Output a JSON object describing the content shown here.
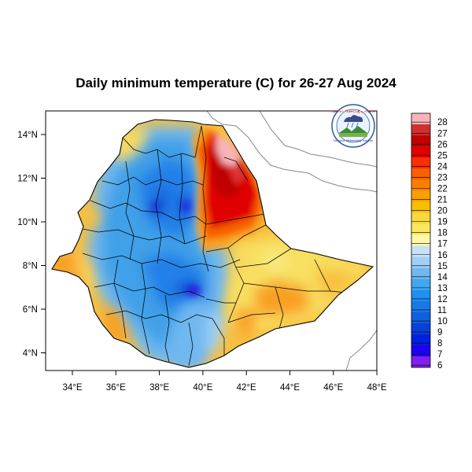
{
  "title": "Daily minimum temperature (C) for 26-27 Aug 2024",
  "axes": {
    "x_ticks": [
      "34°E",
      "36°E",
      "38°E",
      "40°E",
      "42°E",
      "44°E",
      "46°E",
      "48°E"
    ],
    "y_ticks": [
      "14°N",
      "12°N",
      "10°N",
      "8°N",
      "6°N",
      "4°N"
    ]
  },
  "colorbar": {
    "labels": [
      "28",
      "27",
      "26",
      "25",
      "24",
      "23",
      "22",
      "21",
      "20",
      "19",
      "18",
      "17",
      "16",
      "15",
      "14",
      "13",
      "12",
      "11",
      "10",
      "9",
      "8",
      "7",
      "6"
    ],
    "colors": [
      "#f8b4b8",
      "#d03030",
      "#c00000",
      "#e00000",
      "#f83000",
      "#f86000",
      "#f88000",
      "#f8a000",
      "#f8c000",
      "#f8d840",
      "#f8e860",
      "#fff8a8",
      "#c8e0f8",
      "#a0d0f8",
      "#70b8f0",
      "#40a8f0",
      "#2090f0",
      "#1878e8",
      "#1060e0",
      "#0840d8",
      "#0020e0",
      "#2000f0",
      "#8020f0"
    ]
  },
  "logo": {
    "top_text": "የኢትዮጵያ ሚቲዎሮሎጂ ኢንስቲትዩት",
    "bottom_text": "Ethiopian Meteorology Institute"
  },
  "map": {
    "lon_range": [
      33,
      48
    ],
    "lat_range": [
      3.2,
      14.9
    ],
    "region": "Ethiopia"
  }
}
